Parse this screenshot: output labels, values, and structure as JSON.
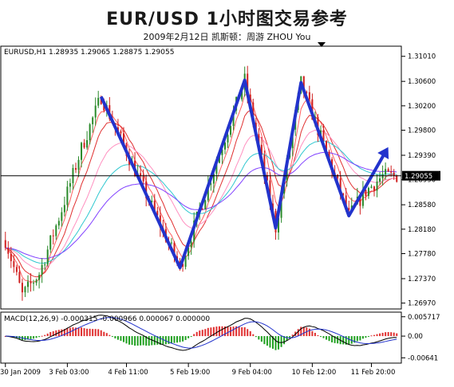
{
  "header": {
    "title": "EUR/USD 1小时图交易参考",
    "subtitle": "2009年2月12日 凯斯顿：周游 ZHOU You"
  },
  "chart_data": [
    {
      "type": "candlestick",
      "symbol_label": "EURUSD,H1 1.28935 1.29065 1.28875 1.29055",
      "price_ticks": [
        "1.31010",
        "1.30600",
        "1.30200",
        "1.29800",
        "1.29390",
        "1.28990",
        "1.28580",
        "1.28180",
        "1.27780",
        "1.27370",
        "1.26970"
      ],
      "price_values": [
        1.3101,
        1.306,
        1.302,
        1.298,
        1.2939,
        1.2899,
        1.2858,
        1.2818,
        1.2778,
        1.2737,
        1.2697
      ],
      "current_price_label": "1.29055",
      "current_price": 1.29055,
      "ylim": [
        1.269,
        1.3115
      ],
      "x_tick_labels": [
        "30 Jan 2009",
        "3 Feb 03:00",
        "4 Feb 11:00",
        "5 Feb 19:00",
        "9 Feb 04:00",
        "10 Feb 12:00",
        "11 Feb 20:00"
      ],
      "zigzag_path": [
        {
          "bar": 34,
          "price": 1.3035
        },
        {
          "bar": 62,
          "price": 1.2755
        },
        {
          "bar": 85,
          "price": 1.3062
        },
        {
          "bar": 96,
          "price": 1.282
        },
        {
          "bar": 105,
          "price": 1.3058
        },
        {
          "bar": 122,
          "price": 1.284
        },
        {
          "bar": 127,
          "price": 1.288
        },
        {
          "bar": 134,
          "price": 1.293
        }
      ]
    },
    {
      "type": "macd",
      "label": "MACD(12,26,9) -0.000315 -0.000966 0.000067 0.000000",
      "ticks": [
        "0.005717",
        "0.00",
        "-0.00641"
      ],
      "tick_values": [
        0.005717,
        0.0,
        -0.00641
      ],
      "ylim": [
        -0.0075,
        0.0066
      ]
    }
  ]
}
